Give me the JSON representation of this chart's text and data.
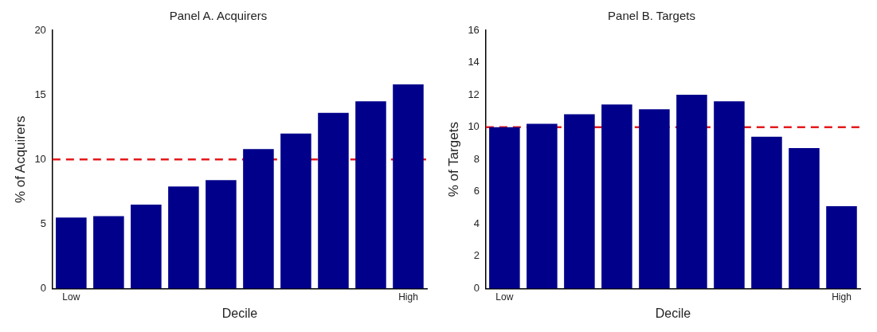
{
  "chart_data": [
    {
      "type": "bar",
      "title": "Panel A. Acquirers",
      "xlabel": "Decile",
      "ylabel": "% of Acquirers",
      "categories": [
        "Low",
        null,
        null,
        null,
        null,
        null,
        null,
        null,
        null,
        "High"
      ],
      "values": [
        5.5,
        5.6,
        6.5,
        7.9,
        8.4,
        10.8,
        12,
        13.6,
        14.5,
        15.8
      ],
      "color": "#00008b",
      "ylim": [
        0,
        20
      ],
      "yticks": [
        0,
        5,
        10,
        15,
        20
      ],
      "grid": false,
      "legend": false,
      "ref_lines": [
        {
          "axis": "y",
          "value": 10,
          "color": "#e41a1c",
          "line_style": "dashed"
        }
      ]
    },
    {
      "type": "bar",
      "title": "Panel B. Targets",
      "xlabel": "Decile",
      "ylabel": "% of Targets",
      "categories": [
        "Low",
        null,
        null,
        null,
        null,
        null,
        null,
        null,
        null,
        "High"
      ],
      "values": [
        10,
        10.2,
        10.8,
        11.4,
        11.1,
        12,
        11.6,
        9.4,
        8.7,
        5.1
      ],
      "color": "#00008b",
      "ylim": [
        0,
        16
      ],
      "yticks": [
        0,
        2,
        4,
        6,
        8,
        10,
        12,
        14,
        16
      ],
      "grid": false,
      "legend": false,
      "ref_lines": [
        {
          "axis": "y",
          "value": 10,
          "color": "#e41a1c",
          "line_style": "dashed"
        }
      ]
    }
  ]
}
